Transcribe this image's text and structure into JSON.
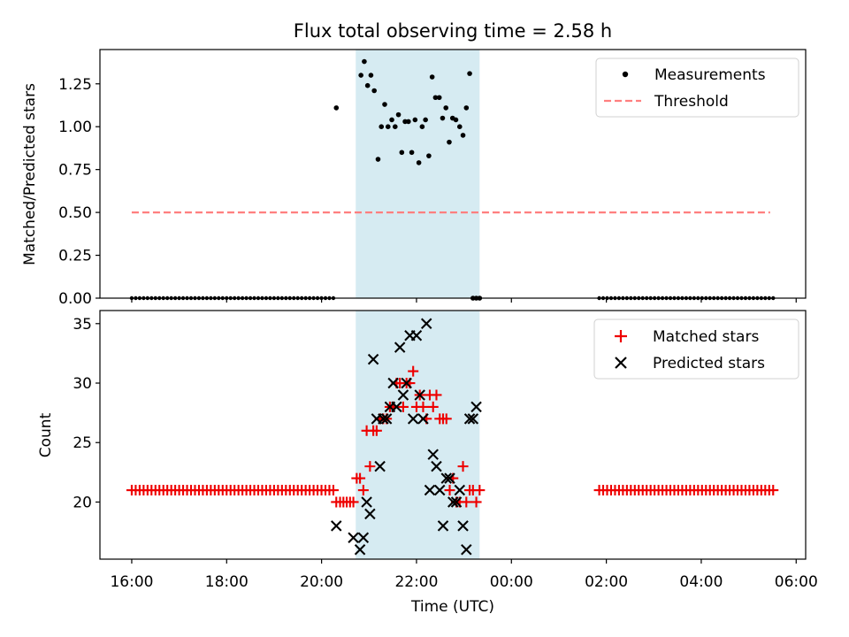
{
  "figure_title": "Flux total observing time = 2.58 h",
  "colors": {
    "measurement": "#000000",
    "threshold": "#ff7f7f",
    "matched": "#ee0000",
    "predicted": "#000000",
    "shade": "#add8e6"
  },
  "chart_data": [
    {
      "type": "scatter",
      "title": "Flux total observing time = 2.58 h",
      "xlabel": "",
      "ylabel": "Matched/Predicted stars",
      "xlim": [
        15.33,
        30.2
      ],
      "ylim": [
        0,
        1.45
      ],
      "yticks": [
        0,
        0.25,
        0.5,
        0.75,
        1.0,
        1.25
      ],
      "ytick_labels": [
        "0.00",
        "0.25",
        "0.50",
        "0.75",
        "1.00",
        "1.25"
      ],
      "shaded_region_hours": [
        20.72,
        23.33
      ],
      "legend": [
        "Measurements",
        "Threshold"
      ],
      "threshold": {
        "name": "Threshold",
        "value": 0.5,
        "x_range": [
          16.0,
          29.45
        ]
      },
      "measurement_zero_ranges": [
        [
          16.0,
          20.25
        ],
        [
          25.85,
          29.55
        ]
      ],
      "series": [
        {
          "name": "Measurements",
          "x": [
            20.31,
            20.83,
            20.9,
            20.97,
            21.04,
            21.11,
            21.19,
            21.26,
            21.33,
            21.4,
            21.48,
            21.55,
            21.62,
            21.69,
            21.76,
            21.83,
            21.9,
            21.97,
            22.05,
            22.12,
            22.19,
            22.26,
            22.33,
            22.4,
            22.48,
            22.55,
            22.62,
            22.69,
            22.76,
            22.83,
            22.91,
            22.98,
            23.05,
            23.12,
            23.19,
            23.26,
            23.33
          ],
          "y": [
            1.11,
            1.3,
            1.38,
            1.24,
            1.3,
            1.21,
            0.81,
            1.0,
            1.13,
            1.0,
            1.04,
            1.0,
            1.07,
            0.85,
            1.03,
            1.03,
            0.85,
            1.04,
            0.79,
            1.0,
            1.04,
            0.83,
            1.29,
            1.17,
            1.17,
            1.05,
            1.11,
            0.91,
            1.05,
            1.04,
            1.0,
            0.95,
            1.11,
            1.31,
            0,
            0,
            0
          ]
        }
      ]
    },
    {
      "type": "scatter",
      "xlabel": "Time (UTC)",
      "ylabel": "Count",
      "xlim": [
        15.33,
        30.2
      ],
      "ylim": [
        15.2,
        36.1
      ],
      "yticks": [
        20,
        25,
        30,
        35
      ],
      "ytick_labels": [
        "20",
        "25",
        "30",
        "35"
      ],
      "xticks": [
        16,
        18,
        20,
        22,
        24,
        26,
        28,
        30
      ],
      "xtick_labels": [
        "16:00",
        "18:00",
        "20:00",
        "22:00",
        "00:00",
        "02:00",
        "04:00",
        "06:00"
      ],
      "shaded_region_hours": [
        20.72,
        23.33
      ],
      "legend": [
        "Matched stars",
        "Predicted stars"
      ],
      "matched_constant_runs": [
        {
          "x_range": [
            16.0,
            20.25
          ],
          "value": 21
        },
        {
          "x_range": [
            25.85,
            29.55
          ],
          "value": 21
        }
      ],
      "series": [
        {
          "name": "Matched stars",
          "x": [
            20.31,
            20.39,
            20.46,
            20.53,
            20.6,
            20.67,
            20.74,
            20.81,
            20.88,
            20.95,
            21.02,
            21.09,
            21.16,
            21.23,
            21.3,
            21.37,
            21.44,
            21.51,
            21.58,
            21.65,
            21.72,
            21.79,
            21.86,
            21.93,
            22.0,
            22.07,
            22.14,
            22.21,
            22.28,
            22.35,
            22.42,
            22.49,
            22.56,
            22.63,
            22.7,
            22.77,
            22.84,
            22.91,
            22.98,
            23.05,
            23.12,
            23.19,
            23.26,
            23.33
          ],
          "y": [
            20,
            20,
            20,
            20,
            20,
            20,
            22,
            22,
            21,
            26,
            23,
            26,
            26,
            27,
            27,
            27,
            28,
            28,
            30,
            30,
            28,
            30,
            30,
            31,
            28,
            29,
            28,
            27,
            29,
            28,
            29,
            27,
            27,
            27,
            21,
            22,
            20,
            20,
            23,
            20,
            21,
            21,
            20,
            21
          ]
        },
        {
          "name": "Predicted stars",
          "x": [
            20.31,
            20.67,
            20.81,
            20.88,
            20.95,
            21.02,
            21.09,
            21.16,
            21.23,
            21.3,
            21.37,
            21.44,
            21.51,
            21.58,
            21.65,
            21.72,
            21.79,
            21.86,
            21.93,
            22.0,
            22.07,
            22.14,
            22.21,
            22.28,
            22.35,
            22.42,
            22.49,
            22.56,
            22.63,
            22.7,
            22.77,
            22.84,
            22.91,
            22.98,
            23.05,
            23.12,
            23.19,
            23.26
          ],
          "y": [
            18,
            17,
            16,
            17,
            20,
            19,
            32,
            27,
            23,
            27,
            27,
            28,
            30,
            28,
            33,
            29,
            30,
            34,
            27,
            34,
            29,
            27,
            35,
            21,
            24,
            23,
            21,
            18,
            22,
            22,
            20,
            20,
            21,
            18,
            16,
            27,
            27,
            28
          ]
        }
      ]
    }
  ]
}
